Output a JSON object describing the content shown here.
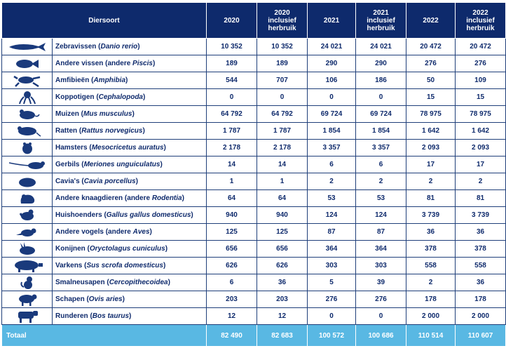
{
  "header": {
    "species": "Diersoort",
    "years": [
      "2020",
      "2020\ninclusief\nherbruik",
      "2021",
      "2021\ninclusief\nherbruik",
      "2022",
      "2022\ninclusief\nherbruik"
    ]
  },
  "rows": [
    {
      "icon": "fish-icon",
      "name": "Zebravissen",
      "latin": "Danio rerio",
      "values": [
        "10 352",
        "10 352",
        "24 021",
        "24 021",
        "20 472",
        "20 472"
      ]
    },
    {
      "icon": "fish-small-icon",
      "name": "Andere vissen (andere ",
      "latin": "Piscis",
      "suffix": ")",
      "values": [
        "189",
        "189",
        "290",
        "290",
        "276",
        "276"
      ]
    },
    {
      "icon": "frog-icon",
      "name": "Amfibieën",
      "latin": "Amphibia",
      "values": [
        "544",
        "707",
        "106",
        "186",
        "50",
        "109"
      ]
    },
    {
      "icon": "octopus-icon",
      "name": "Koppotigen",
      "latin": "Cephalopoda",
      "values": [
        "0",
        "0",
        "0",
        "0",
        "15",
        "15"
      ]
    },
    {
      "icon": "mouse-icon",
      "name": "Muizen",
      "latin": "Mus musculus",
      "values": [
        "64 792",
        "64 792",
        "69 724",
        "69 724",
        "78 975",
        "78 975"
      ]
    },
    {
      "icon": "rat-icon",
      "name": "Ratten",
      "latin": "Rattus norvegicus",
      "values": [
        "1 787",
        "1 787",
        "1 854",
        "1 854",
        "1 642",
        "1 642"
      ]
    },
    {
      "icon": "hamster-icon",
      "name": "Hamsters",
      "latin": "Mesocricetus auratus",
      "values": [
        "2 178",
        "2 178",
        "3 357",
        "3 357",
        "2 093",
        "2 093"
      ]
    },
    {
      "icon": "gerbil-icon",
      "name": "Gerbils",
      "latin": "Meriones unguiculatus",
      "values": [
        "14",
        "14",
        "6",
        "6",
        "17",
        "17"
      ]
    },
    {
      "icon": "guinea-pig-icon",
      "name": "Cavia's",
      "latin": "Cavia porcellus",
      "values": [
        "1",
        "1",
        "2",
        "2",
        "2",
        "2"
      ]
    },
    {
      "icon": "rodent-icon",
      "name": "Andere knaagdieren (andere ",
      "latin": "Rodentia",
      "suffix": ")",
      "values": [
        "64",
        "64",
        "53",
        "53",
        "81",
        "81"
      ]
    },
    {
      "icon": "chicken-icon",
      "name": "Huishoenders",
      "latin": "Gallus gallus domesticus",
      "values": [
        "940",
        "940",
        "124",
        "124",
        "3 739",
        "3 739"
      ]
    },
    {
      "icon": "bird-icon",
      "name": "Andere vogels (andere ",
      "latin": "Aves",
      "suffix": ")",
      "values": [
        "125",
        "125",
        "87",
        "87",
        "36",
        "36"
      ]
    },
    {
      "icon": "rabbit-icon",
      "name": "Konijnen",
      "latin": "Oryctolagus cuniculus",
      "values": [
        "656",
        "656",
        "364",
        "364",
        "378",
        "378"
      ]
    },
    {
      "icon": "pig-icon",
      "name": "Varkens",
      "latin": "Sus scrofa domesticus",
      "values": [
        "626",
        "626",
        "303",
        "303",
        "558",
        "558"
      ]
    },
    {
      "icon": "monkey-icon",
      "name": "Smalneusapen",
      "latin": "Cercopithecoidea",
      "values": [
        "6",
        "36",
        "5",
        "39",
        "2",
        "36"
      ]
    },
    {
      "icon": "sheep-icon",
      "name": "Schapen",
      "latin": "Ovis aries",
      "values": [
        "203",
        "203",
        "276",
        "276",
        "178",
        "178"
      ]
    },
    {
      "icon": "cow-icon",
      "name": "Runderen",
      "latin": "Bos taurus",
      "values": [
        "12",
        "12",
        "0",
        "0",
        "2 000",
        "2 000"
      ]
    }
  ],
  "total": {
    "label": "Totaal",
    "values": [
      "82 490",
      "82 683",
      "100 572",
      "100 686",
      "110 514",
      "110 607"
    ]
  },
  "colors": {
    "header": "#0e2a6c",
    "total": "#59b8e3",
    "text": "#0e2a6c"
  }
}
